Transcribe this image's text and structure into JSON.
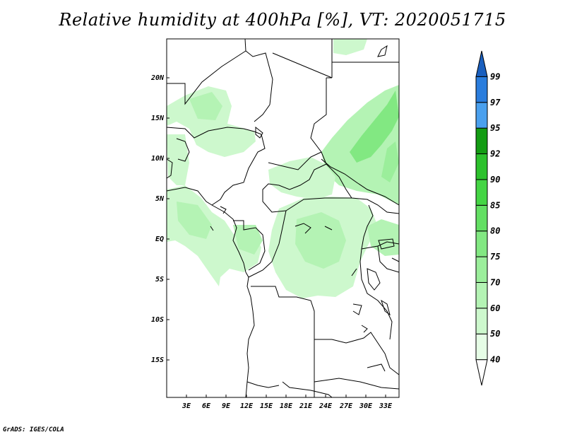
{
  "title": "Relative humidity at 400hPa [%], VT: 2020051715",
  "credit": "GrADS: IGES/COLA",
  "lon_ticks": [
    "3E",
    "6E",
    "9E",
    "12E",
    "15E",
    "18E",
    "21E",
    "24E",
    "27E",
    "30E",
    "33E"
  ],
  "lat_ticks": [
    "20N",
    "15N",
    "10N",
    "5N",
    "EQ",
    "5S",
    "10S",
    "15S"
  ],
  "colorbar": {
    "levels": [
      "40",
      "50",
      "60",
      "70",
      "75",
      "80",
      "85",
      "90",
      "92",
      "95",
      "97",
      "99"
    ],
    "colors": [
      "#ffffff",
      "#e6fde6",
      "#cdf8cd",
      "#b4f3b4",
      "#9bee9b",
      "#82e882",
      "#63df63",
      "#44d544",
      "#2cc12c",
      "#139c13",
      "#4aa0ee",
      "#2a7ddd",
      "#1a5fbe"
    ]
  },
  "humidity_colors": {
    "c50": "#e6fde6",
    "c60": "#cdf8cd",
    "c70": "#b4f3b4",
    "c75": "#9bee9b",
    "c80": "#82e882"
  }
}
